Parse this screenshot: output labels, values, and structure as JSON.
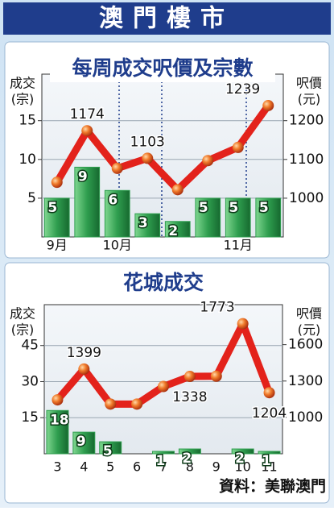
{
  "header": {
    "title": "澳門樓市"
  },
  "chart_data": [
    {
      "type": "bar-line",
      "title": "每周成交呎價及宗數",
      "y_label": [
        "成交",
        "(宗)"
      ],
      "y2_label": [
        "呎價",
        "(元)"
      ],
      "categories": [
        "9月",
        null,
        "10月",
        null,
        null,
        null,
        "11月",
        null
      ],
      "series": [
        {
          "color": "#2f9e4f",
          "values": [
            5,
            9,
            6,
            3,
            2,
            5,
            5,
            5
          ]
        },
        {
          "color": "#e3221b",
          "axis": "y2",
          "values": [
            1041,
            1174,
            1077,
            1103,
            1022,
            1097,
            1131,
            1239
          ],
          "value_labels": [
            null,
            "1174",
            null,
            "1103",
            null,
            null,
            null,
            "1239"
          ]
        }
      ],
      "ylim": [
        0,
        21
      ],
      "yticks": [
        5,
        10,
        15
      ],
      "y2lim": [
        900,
        1320
      ],
      "y2ticks": [
        1000,
        1100,
        1200
      ],
      "grid": true
    },
    {
      "type": "bar-line",
      "title": "花城成交",
      "y_label": [
        "成交",
        "(宗)"
      ],
      "y2_label": [
        "呎價",
        "(元)"
      ],
      "categories": [
        "3",
        "4",
        "5",
        "6",
        "7",
        "8",
        "9",
        "10",
        "11"
      ],
      "series": [
        {
          "color": "#2f9e4f",
          "values": [
            18,
            9,
            5,
            null,
            1,
            2,
            null,
            2,
            1
          ]
        },
        {
          "color": "#e3221b",
          "axis": "y2",
          "values": [
            1145,
            1399,
            1110,
            1110,
            1255,
            1338,
            1340,
            1773,
            1204
          ],
          "value_labels": [
            null,
            "1399",
            null,
            null,
            null,
            "1338",
            null,
            "1773",
            "1204"
          ]
        }
      ],
      "ylim": [
        0,
        62
      ],
      "yticks": [
        15,
        30,
        45
      ],
      "y2lim": [
        700,
        1930
      ],
      "y2ticks": [
        1000,
        1300,
        1600
      ],
      "grid": true
    }
  ],
  "source": "資料：美聯澳門"
}
